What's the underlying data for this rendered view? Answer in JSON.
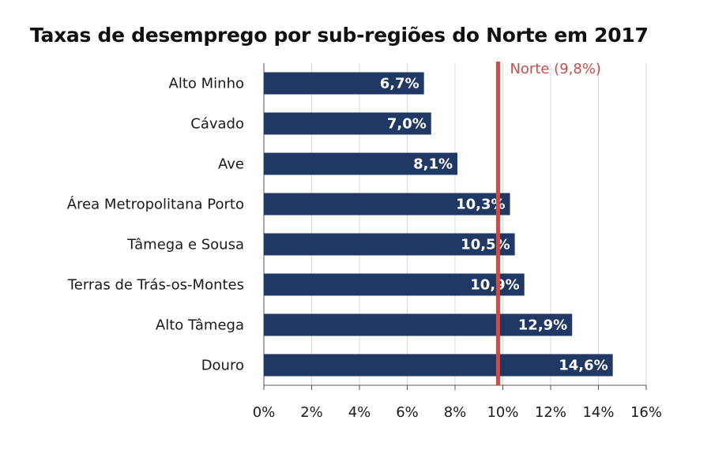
{
  "chart_data": {
    "type": "bar",
    "orientation": "horizontal",
    "title": "Taxas de desemprego por sub-regiões do Norte em 2017",
    "categories": [
      "Alto Minho",
      "Cávado",
      "Ave",
      "Área Metropolitana Porto",
      "Tâmega e Sousa",
      "Terras de Trás-os-Montes",
      "Alto Tâmega",
      "Douro"
    ],
    "values": [
      6.7,
      7.0,
      8.1,
      10.3,
      10.5,
      10.9,
      12.9,
      14.6
    ],
    "value_labels": [
      "6,7%",
      "7,0%",
      "8,1%",
      "10,3%",
      "10,5%",
      "10,9%",
      "12,9%",
      "14,6%"
    ],
    "xlim": [
      0,
      16
    ],
    "xticks": [
      0,
      2,
      4,
      6,
      8,
      10,
      12,
      14,
      16
    ],
    "xtick_labels": [
      "0%",
      "2%",
      "4%",
      "6%",
      "8%",
      "10%",
      "12%",
      "14%",
      "16%"
    ],
    "grid": "vertical",
    "reference_line": {
      "value": 9.8,
      "label": "Norte (9,8%)",
      "color": "#c0504d"
    },
    "bar_color": "#1f3864"
  }
}
